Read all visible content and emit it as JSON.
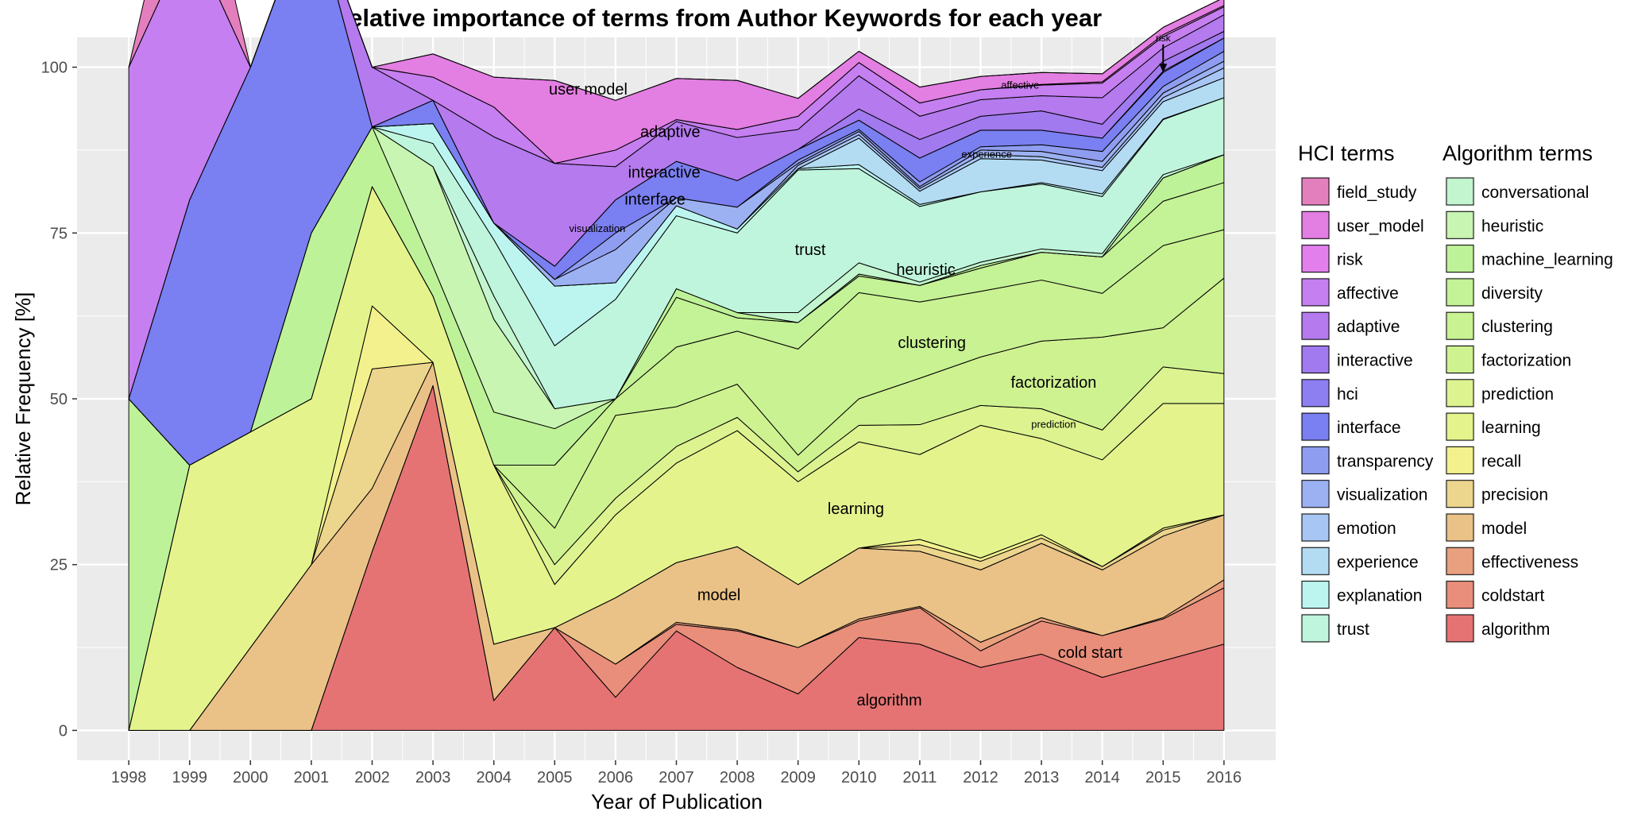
{
  "chart_data": {
    "type": "area",
    "title": "Relative importance of terms from Author Keywords for each year",
    "xlabel": "Year of Publication",
    "ylabel": "Relative Frequency [%]",
    "x": [
      1998,
      1999,
      2000,
      2001,
      2002,
      2003,
      2004,
      2005,
      2006,
      2007,
      2008,
      2009,
      2010,
      2011,
      2012,
      2013,
      2014,
      2015,
      2016
    ],
    "x_ticks": [
      "1998",
      "1999",
      "2000",
      "2001",
      "2002",
      "2003",
      "2004",
      "2005",
      "2006",
      "2007",
      "2008",
      "2009",
      "2010",
      "2011",
      "2012",
      "2013",
      "2014",
      "2015",
      "2016"
    ],
    "xlim": [
      1997.15,
      2016.85
    ],
    "ylim": [
      -4.5,
      104.5
    ],
    "y_ticks": [
      "0",
      "25",
      "50",
      "75",
      "100"
    ],
    "y_tick_values": [
      0,
      25,
      50,
      75,
      100
    ],
    "stacking": "stacked to 100, first series at bottom",
    "grid": true,
    "legend_position": "right",
    "legend_groups": [
      {
        "title": "HCI terms",
        "entries": [
          "field_study",
          "user_model",
          "risk",
          "affective",
          "adaptive",
          "interactive",
          "hci",
          "interface",
          "transparency",
          "visualization",
          "emotion",
          "experience",
          "explanation",
          "trust"
        ]
      },
      {
        "title": "Algorithm terms",
        "entries": [
          "conversational",
          "heuristic",
          "machine_learning",
          "diversity",
          "clustering",
          "factorization",
          "prediction",
          "learning",
          "recall",
          "precision",
          "model",
          "effectiveness",
          "coldstart",
          "algorithm"
        ]
      }
    ],
    "series": [
      {
        "name": "algorithm",
        "color": "#e57373",
        "values": [
          0,
          0,
          0,
          0,
          27,
          52,
          4.5,
          15.5,
          5,
          15,
          9.5,
          5.5,
          14,
          13,
          9.5,
          11.5,
          8,
          10.5,
          13
        ]
      },
      {
        "name": "coldstart",
        "color": "#e88e7b",
        "values": [
          0,
          0,
          0,
          0,
          0,
          0,
          0,
          0,
          5,
          1,
          5.5,
          7,
          2.5,
          5.5,
          2.5,
          5,
          6.3,
          6.3,
          8.5
        ]
      },
      {
        "name": "effectiveness",
        "color": "#e8a07f",
        "values": [
          0,
          0,
          0,
          0,
          0,
          0,
          0,
          0,
          0,
          0.3,
          0.2,
          0,
          0.3,
          0.2,
          1.3,
          0.5,
          0,
          0.2,
          1.2
        ]
      },
      {
        "name": "model",
        "color": "#eac287",
        "values": [
          0,
          0,
          12.5,
          25,
          9.5,
          3.5,
          8.5,
          0,
          10,
          9,
          12.5,
          9.5,
          10.7,
          8.3,
          10.9,
          11.2,
          9.9,
          12.3,
          9.8
        ]
      },
      {
        "name": "precision",
        "color": "#ecd58d",
        "values": [
          0,
          0,
          0,
          0,
          18,
          0,
          0,
          0,
          0,
          0,
          0,
          0,
          0,
          1,
          1.3,
          0.8,
          0.5,
          0.9,
          0
        ]
      },
      {
        "name": "recall",
        "color": "#f3f18d",
        "values": [
          0,
          0,
          0,
          0,
          9.5,
          0,
          0,
          0,
          0,
          0,
          0,
          0,
          0,
          0.8,
          0.5,
          0.5,
          0,
          0.3,
          0
        ]
      },
      {
        "name": "learning",
        "color": "#e5f38d",
        "values": [
          0,
          40,
          32.5,
          25,
          18,
          10,
          27,
          6.5,
          12.5,
          15,
          17.5,
          15.5,
          16,
          12.8,
          20,
          14.5,
          16.1,
          18.8,
          16.8
        ]
      },
      {
        "name": "prediction",
        "color": "#dcf390",
        "values": [
          0,
          0,
          0,
          0,
          0,
          0,
          0,
          3,
          2.5,
          2.5,
          2,
          1.5,
          2.5,
          4.5,
          3,
          4.5,
          4.5,
          5.5,
          4.5
        ]
      },
      {
        "name": "factorization",
        "color": "#cff291",
        "values": [
          0,
          0,
          0,
          0,
          0,
          0,
          0,
          5.5,
          12.5,
          6,
          5,
          2.5,
          4,
          7,
          7.3,
          10.2,
          14,
          5.9,
          14.4
        ]
      },
      {
        "name": "clustering",
        "color": "#c9f293",
        "values": [
          0,
          0,
          0,
          0,
          0,
          0,
          0,
          9.5,
          2.5,
          9,
          8,
          16,
          16,
          11.5,
          9.9,
          9.2,
          6.6,
          12.4,
          7.3
        ]
      },
      {
        "name": "diversity",
        "color": "#c4f296",
        "values": [
          0,
          0,
          0,
          0,
          0,
          0,
          0,
          0,
          0,
          7.5,
          2,
          4,
          2.5,
          2.5,
          3.5,
          4.2,
          5.5,
          6.7,
          7.1
        ]
      },
      {
        "name": "machine_learning",
        "color": "#bef298",
        "values": [
          50,
          0,
          0,
          25,
          9,
          4.5,
          8,
          5.5,
          0,
          1.3,
          0.8,
          0,
          0.3,
          0,
          0.4,
          0,
          0,
          3.5,
          4.2
        ]
      },
      {
        "name": "heuristic",
        "color": "#c8f5b2",
        "values": [
          0,
          0,
          0,
          0,
          0,
          15,
          14,
          3,
          0,
          0,
          0,
          0,
          0,
          0,
          0,
          0,
          0,
          0,
          0
        ]
      },
      {
        "name": "conversational",
        "color": "#c3f5cf",
        "values": [
          0,
          0,
          0,
          0,
          0,
          0,
          3.5,
          0,
          0,
          0,
          0,
          1.5,
          1.7,
          0.5,
          0.5,
          0.5,
          0.5,
          0.5,
          0
        ]
      },
      {
        "name": "trust",
        "color": "#bff5dc",
        "values": [
          0,
          0,
          0,
          0,
          0,
          3.5,
          8.5,
          9.5,
          15,
          11,
          12,
          21.5,
          14.2,
          11.4,
          10.6,
          9.8,
          8.6,
          8.3,
          8.6
        ]
      },
      {
        "name": "explanation",
        "color": "#bcf5f0",
        "values": [
          0,
          0,
          0,
          0,
          0,
          3,
          2.5,
          9,
          2.5,
          1.5,
          0.6,
          0.2,
          0.6,
          0.3,
          0,
          0.2,
          0.4,
          0.1,
          0
        ]
      },
      {
        "name": "experience",
        "color": "#b3dcf3",
        "values": [
          0,
          0,
          0,
          0,
          0,
          0,
          0,
          0,
          0,
          0,
          0,
          0,
          4,
          2,
          5,
          3.4,
          3.5,
          2.6,
          3
        ]
      },
      {
        "name": "emotion",
        "color": "#a8c6f3",
        "values": [
          0,
          0,
          0,
          0,
          0,
          0,
          0,
          0,
          0,
          0,
          0,
          0.5,
          0.5,
          0.4,
          0.6,
          0.5,
          0.5,
          0.6,
          1.5
        ]
      },
      {
        "name": "visualization",
        "color": "#9cb1f2",
        "values": [
          0,
          0,
          0,
          0,
          0,
          0,
          0,
          1,
          5,
          1.2,
          3.3,
          0.3,
          0.5,
          0.3,
          0.7,
          0.8,
          0.9,
          0.7,
          1
        ]
      },
      {
        "name": "transparency",
        "color": "#8f9df1",
        "values": [
          0,
          0,
          0,
          0,
          0,
          0,
          0,
          0,
          2.5,
          0,
          0,
          0.5,
          0.3,
          0.7,
          0.5,
          1,
          1.5,
          1,
          1.5
        ]
      },
      {
        "name": "interface",
        "color": "#7a7ff1",
        "values": [
          0,
          40,
          55,
          50,
          0,
          3.5,
          0,
          2,
          5,
          5.5,
          4,
          1.6,
          1.4,
          3.6,
          2.5,
          2.2,
          2,
          2.1,
          2
        ]
      },
      {
        "name": "hci",
        "color": "#8d7ef1",
        "values": [
          0,
          0,
          0,
          0,
          0,
          0,
          0,
          0,
          0,
          0,
          0,
          0,
          0,
          0,
          0,
          0,
          0,
          0.2,
          0
        ]
      },
      {
        "name": "interactive",
        "color": "#a07aee",
        "values": [
          0,
          0,
          0,
          0,
          0,
          0,
          0,
          0,
          0,
          0,
          0,
          0,
          1.7,
          2.8,
          2.1,
          2.9,
          2.1,
          1.5,
          1
        ]
      },
      {
        "name": "adaptive",
        "color": "#b47aee",
        "values": [
          0,
          0,
          0,
          0,
          9,
          0,
          13,
          15.5,
          5,
          6,
          6.5,
          3,
          5,
          3.5,
          2.5,
          2.3,
          4,
          2,
          2.5
        ]
      },
      {
        "name": "affective",
        "color": "#c57ff0",
        "values": [
          50,
          40,
          0,
          0,
          0,
          3.5,
          4.5,
          0,
          2.5,
          0.3,
          1.2,
          2,
          2,
          2,
          1.5,
          1.6,
          2.2,
          1.7,
          1.2
        ]
      },
      {
        "name": "risk",
        "color": "#e27fed",
        "values": [
          0,
          0,
          0,
          0,
          0,
          0,
          0,
          0,
          0,
          0,
          0,
          0,
          0,
          0,
          0,
          0.1,
          0.2,
          0.3,
          0.2
        ]
      },
      {
        "name": "user_model",
        "color": "#e37ee2",
        "values": [
          0,
          0,
          0,
          0,
          0,
          3.5,
          4.5,
          12.5,
          7.5,
          6.2,
          7.4,
          2.7,
          1.7,
          2.4,
          2,
          1.8,
          1.2,
          1.1,
          1.2
        ]
      },
      {
        "name": "field_study",
        "color": "#e47fbe",
        "values": [
          0,
          20,
          0,
          0,
          0,
          0,
          0,
          0,
          0,
          0,
          0,
          0,
          0,
          0,
          0,
          0,
          0,
          0,
          0
        ]
      }
    ],
    "annotations": [
      {
        "text": "user model",
        "x": 2005.55,
        "y": 96.7,
        "size": "large"
      },
      {
        "text": "adaptive",
        "x": 2006.9,
        "y": 90.3,
        "size": "large"
      },
      {
        "text": "interactive",
        "x": 2006.8,
        "y": 84.2,
        "size": "large"
      },
      {
        "text": "interface",
        "x": 2006.65,
        "y": 80.1,
        "size": "large"
      },
      {
        "text": "visualization",
        "x": 2005.7,
        "y": 75.7,
        "size": "small"
      },
      {
        "text": "trust",
        "x": 2009.2,
        "y": 72.5,
        "size": "large"
      },
      {
        "text": "heuristic",
        "x": 2011.1,
        "y": 69.5,
        "size": "large"
      },
      {
        "text": "clustering",
        "x": 2011.2,
        "y": 58.5,
        "size": "large"
      },
      {
        "text": "factorization",
        "x": 2013.2,
        "y": 52.5,
        "size": "large"
      },
      {
        "text": "prediction",
        "x": 2013.2,
        "y": 46.2,
        "size": "small"
      },
      {
        "text": "learning",
        "x": 2009.95,
        "y": 33.5,
        "size": "large"
      },
      {
        "text": "model",
        "x": 2007.7,
        "y": 20.5,
        "size": "large"
      },
      {
        "text": "cold start",
        "x": 2013.8,
        "y": 11.8,
        "size": "large"
      },
      {
        "text": "algorithm",
        "x": 2010.5,
        "y": 4.6,
        "size": "large"
      },
      {
        "text": "affective",
        "x": 2012.65,
        "y": 97.3,
        "size": "small"
      },
      {
        "text": "experience",
        "x": 2012.1,
        "y": 86.9,
        "size": "small"
      },
      {
        "text": "risk",
        "x": 2015,
        "y": 104.4,
        "size": "tiny",
        "arrow_to": [
          2015,
          99.2
        ]
      }
    ]
  }
}
